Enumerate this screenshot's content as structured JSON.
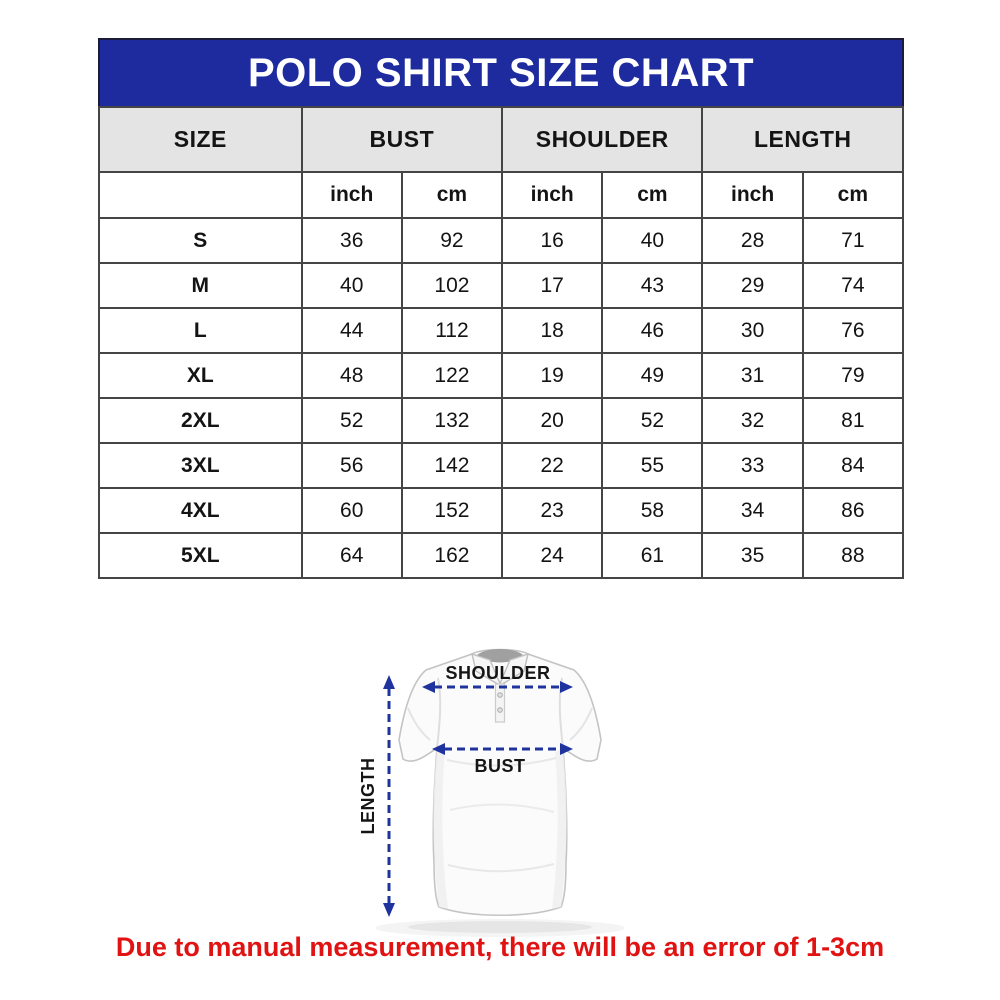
{
  "title": "POLO SHIRT SIZE CHART",
  "colors": {
    "title_bar_bg": "#1d2b9f",
    "title_text": "#ffffff",
    "group_header_bg": "#e4e4e4",
    "grid_line": "#454545",
    "note_text": "#e01212",
    "arrow_blue": "#1e339e"
  },
  "table": {
    "column_groups": [
      "SIZE",
      "BUST",
      "SHOULDER",
      "LENGTH"
    ],
    "unit_headers": [
      "inch",
      "cm",
      "inch",
      "cm",
      "inch",
      "cm"
    ],
    "rows": [
      {
        "size": "S",
        "values": [
          "36",
          "92",
          "16",
          "40",
          "28",
          "71"
        ]
      },
      {
        "size": "M",
        "values": [
          "40",
          "102",
          "17",
          "43",
          "29",
          "74"
        ]
      },
      {
        "size": "L",
        "values": [
          "44",
          "112",
          "18",
          "46",
          "30",
          "76"
        ]
      },
      {
        "size": "XL",
        "values": [
          "48",
          "122",
          "19",
          "49",
          "31",
          "79"
        ]
      },
      {
        "size": "2XL",
        "values": [
          "52",
          "132",
          "20",
          "52",
          "32",
          "81"
        ]
      },
      {
        "size": "3XL",
        "values": [
          "56",
          "142",
          "22",
          "55",
          "33",
          "84"
        ]
      },
      {
        "size": "4XL",
        "values": [
          "60",
          "152",
          "23",
          "58",
          "34",
          "86"
        ]
      },
      {
        "size": "5XL",
        "values": [
          "64",
          "162",
          "24",
          "61",
          "35",
          "88"
        ]
      }
    ]
  },
  "diagram": {
    "labels": {
      "shoulder": "SHOULDER",
      "bust": "BUST",
      "length": "LENGTH"
    }
  },
  "note": "Due to manual measurement, there will be an error of 1-3cm",
  "chart_data": {
    "type": "table",
    "title": "POLO SHIRT SIZE CHART",
    "columns": [
      "SIZE",
      "BUST (inch)",
      "BUST (cm)",
      "SHOULDER (inch)",
      "SHOULDER (cm)",
      "LENGTH (inch)",
      "LENGTH (cm)"
    ],
    "rows": [
      [
        "S",
        36,
        92,
        16,
        40,
        28,
        71
      ],
      [
        "M",
        40,
        102,
        17,
        43,
        29,
        74
      ],
      [
        "L",
        44,
        112,
        18,
        46,
        30,
        76
      ],
      [
        "XL",
        48,
        122,
        19,
        49,
        31,
        79
      ],
      [
        "2XL",
        52,
        132,
        20,
        52,
        32,
        81
      ],
      [
        "3XL",
        56,
        142,
        22,
        55,
        33,
        84
      ],
      [
        "4XL",
        60,
        152,
        23,
        58,
        34,
        86
      ],
      [
        "5XL",
        64,
        162,
        24,
        61,
        35,
        88
      ]
    ],
    "footnote": "Due to manual measurement, there will be an error of 1-3cm"
  }
}
